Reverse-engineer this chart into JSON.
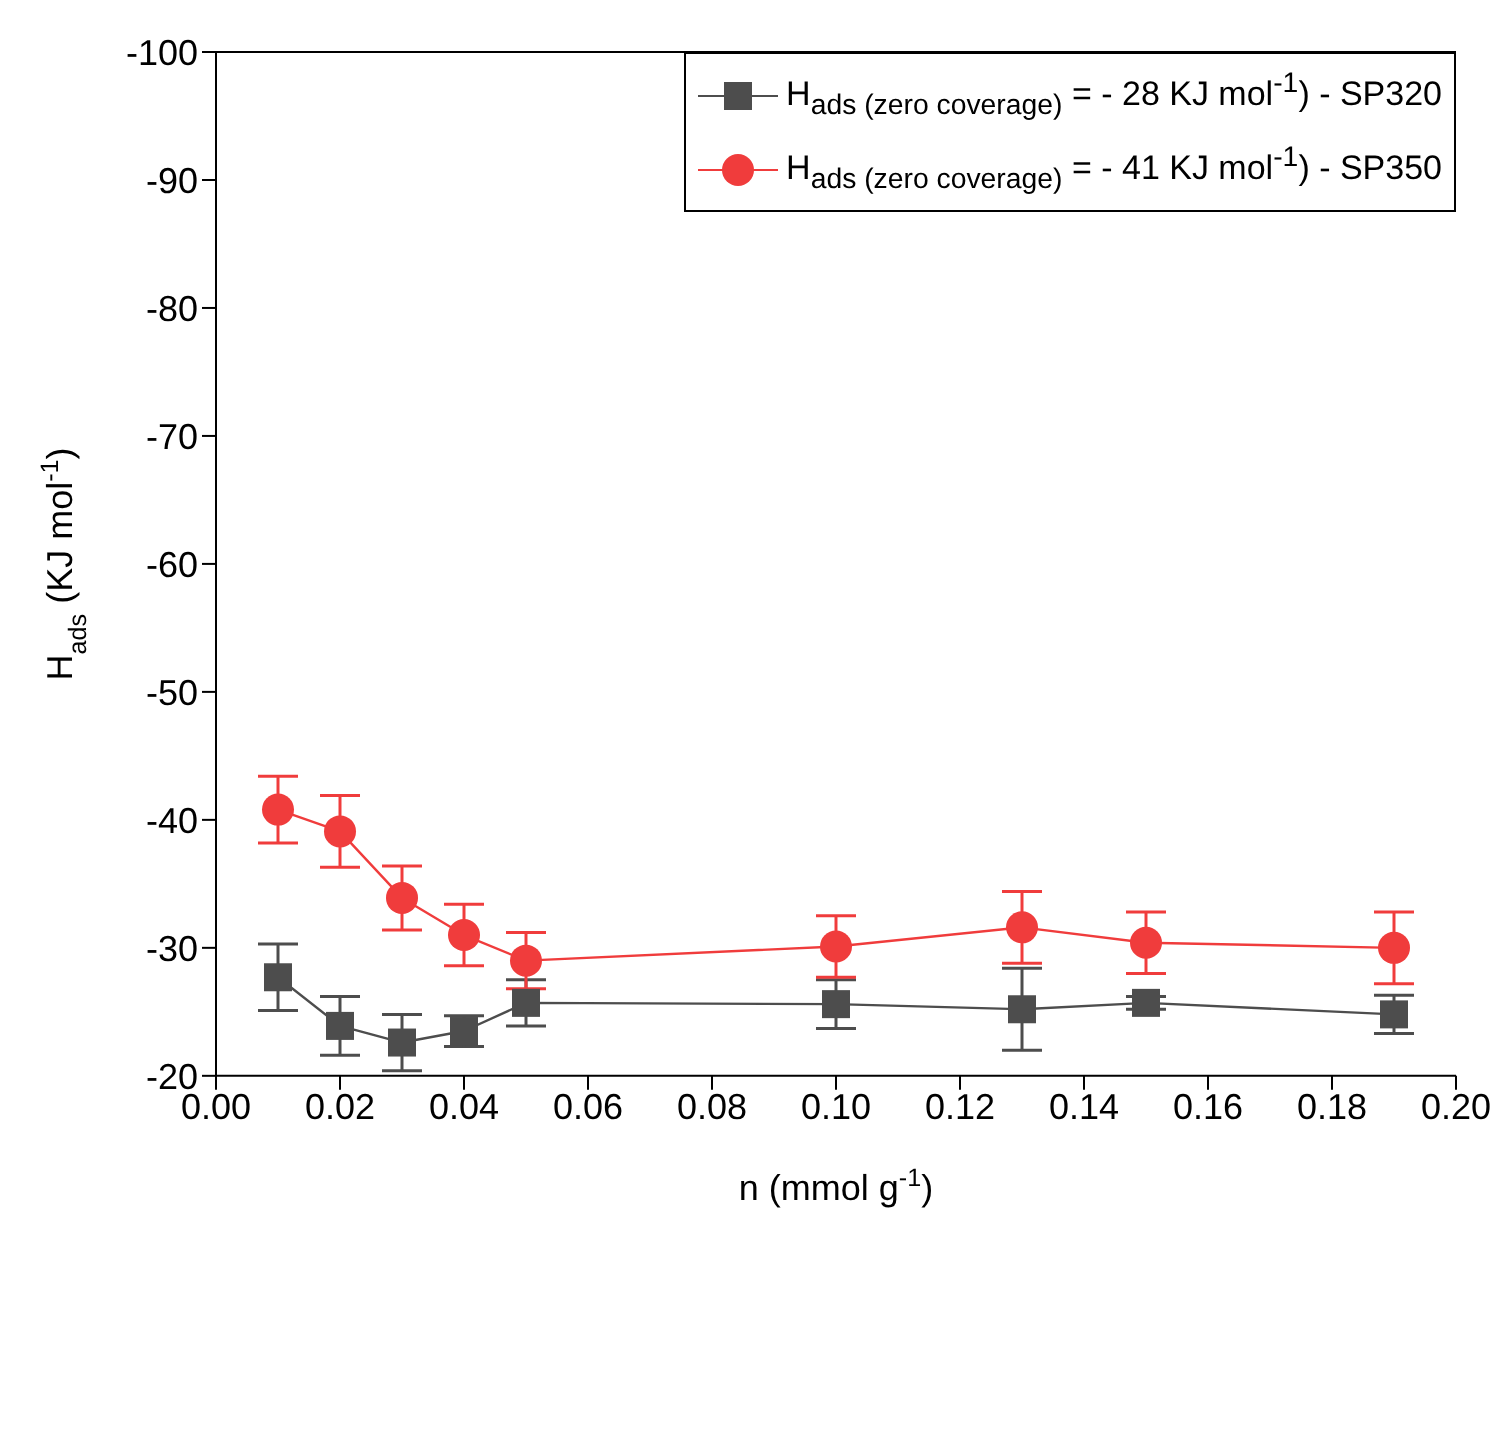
{
  "chart_data": {
    "type": "line",
    "xlabel": "n (mmol g$^{-1}$)",
    "ylabel": "H$_{ads}$ (KJ mol$^{-1}$)",
    "x": [
      0.01,
      0.02,
      0.03,
      0.04,
      0.05,
      0.1,
      0.13,
      0.15,
      0.19
    ],
    "series": [
      {
        "name": "H$_{ads (zero coverage)}$ = - 28 KJ mol$^{-1}$)  - SP320",
        "color": "#4d4d4d",
        "marker": "square",
        "values": [
          -27.7,
          -23.9,
          -22.6,
          -23.5,
          -25.7,
          -25.6,
          -25.2,
          -25.7,
          -24.8
        ],
        "errors": [
          2.6,
          2.3,
          2.2,
          1.2,
          1.8,
          1.9,
          3.2,
          0.5,
          1.5
        ]
      },
      {
        "name": "H$_{ads (zero coverage)}$ = - 41  KJ mol$^{-1}$) - SP350",
        "color": "#f03c3c",
        "marker": "circle",
        "values": [
          -40.8,
          -39.1,
          -33.9,
          -31.0,
          -29.0,
          -30.1,
          -31.6,
          -30.4,
          -30.0
        ],
        "errors": [
          2.6,
          2.8,
          2.5,
          2.4,
          2.2,
          2.4,
          2.8,
          2.4,
          2.8
        ]
      }
    ],
    "xlim": [
      0,
      0.2
    ],
    "xticks": [
      {
        "value": 0,
        "label": "0.00"
      },
      {
        "value": 0.02,
        "label": "0.02"
      },
      {
        "value": 0.04,
        "label": "0.04"
      },
      {
        "value": 0.06,
        "label": "0.06"
      },
      {
        "value": 0.08,
        "label": "0.08"
      },
      {
        "value": 0.1,
        "label": "0.10"
      },
      {
        "value": 0.12,
        "label": "0.12"
      },
      {
        "value": 0.14,
        "label": "0.14"
      },
      {
        "value": 0.16,
        "label": "0.16"
      },
      {
        "value": 0.18,
        "label": "0.18"
      },
      {
        "value": 0.2,
        "label": "0.20"
      }
    ],
    "ylim": [
      -20,
      -100
    ],
    "yticks": [
      -20,
      -30,
      -40,
      -50,
      -60,
      -70,
      -80,
      -90,
      -100
    ],
    "grid": false,
    "legend": "top right"
  }
}
